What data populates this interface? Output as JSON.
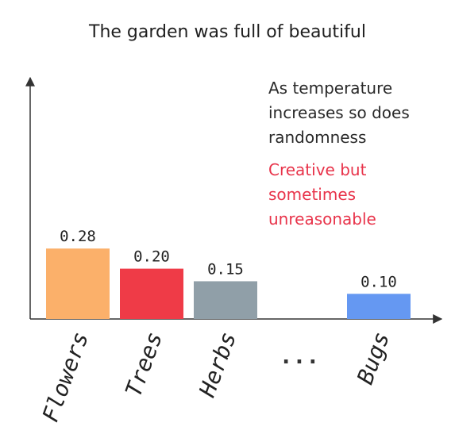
{
  "title": "The garden was full of beautiful",
  "annotation": {
    "main": [
      "As temperature",
      "increases so does",
      "randomness"
    ],
    "highlight": [
      "Creative but",
      "sometimes",
      "unreasonable"
    ],
    "highlight_color": "#e8334a"
  },
  "chart_data": {
    "type": "bar",
    "title": "The garden was full of beautiful",
    "xlabel": "",
    "ylabel": "",
    "ylim": [
      0,
      0.36
    ],
    "grid": false,
    "legend": "none",
    "categories": [
      "Flowers",
      "Trees",
      "Herbs",
      "...",
      "Bugs"
    ],
    "values": [
      0.28,
      0.2,
      0.15,
      null,
      0.1
    ],
    "data_labels": [
      "0.28",
      "0.20",
      "0.15",
      "",
      "0.10"
    ],
    "colors": [
      "#fbb06a",
      "#ef3b47",
      "#909fa8",
      null,
      "#6598f2"
    ],
    "gap_label": "..."
  }
}
